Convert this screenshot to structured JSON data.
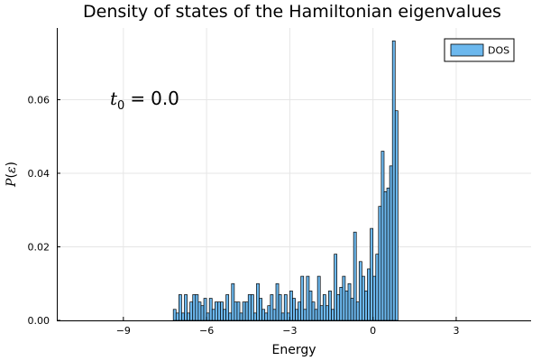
{
  "chart_data": {
    "type": "bar",
    "title": "Density of states of the Hamiltonian eigenvalues",
    "xlabel": "Energy",
    "ylabel_symbol": "P",
    "ylabel_arg": "ε",
    "xlim": [
      -11.4,
      5.7
    ],
    "ylim": [
      0,
      0.0795
    ],
    "xticks": [
      -9,
      -6,
      -3,
      0,
      3
    ],
    "xtick_labels": [
      "−9",
      "−6",
      "−3",
      "0",
      "3"
    ],
    "yticks": [
      0,
      0.02,
      0.04,
      0.06
    ],
    "ytick_labels": [
      "0.00",
      "0.02",
      "0.04",
      "0.06"
    ],
    "grid": true,
    "legend_position": "top-right",
    "bar_color": "#6cb8ee",
    "bin_width": 0.1,
    "series": [
      {
        "name": "DOS",
        "bin_starts": [
          -7.2,
          -7.1,
          -7.0,
          -6.9,
          -6.8,
          -6.7,
          -6.6,
          -6.5,
          -6.4,
          -6.3,
          -6.2,
          -6.1,
          -6.0,
          -5.9,
          -5.8,
          -5.7,
          -5.6,
          -5.5,
          -5.4,
          -5.3,
          -5.2,
          -5.1,
          -5.0,
          -4.9,
          -4.8,
          -4.7,
          -4.6,
          -4.5,
          -4.4,
          -4.3,
          -4.2,
          -4.1,
          -4.0,
          -3.9,
          -3.8,
          -3.7,
          -3.6,
          -3.5,
          -3.4,
          -3.3,
          -3.2,
          -3.1,
          -3.0,
          -2.9,
          -2.8,
          -2.7,
          -2.6,
          -2.5,
          -2.4,
          -2.3,
          -2.2,
          -2.1,
          -2.0,
          -1.9,
          -1.8,
          -1.7,
          -1.6,
          -1.5,
          -1.4,
          -1.3,
          -1.2,
          -1.1,
          -1.0,
          -0.9,
          -0.8,
          -0.7,
          -0.6,
          -0.5,
          -0.4,
          -0.3,
          -0.2,
          -0.1,
          0.0,
          0.1,
          0.2,
          0.3,
          0.4,
          0.5,
          0.6,
          0.7,
          0.8
        ],
        "values": [
          0.003,
          0.002,
          0.007,
          0.002,
          0.007,
          0.002,
          0.005,
          0.007,
          0.007,
          0.005,
          0.004,
          0.006,
          0.002,
          0.006,
          0.003,
          0.005,
          0.005,
          0.005,
          0.003,
          0.007,
          0.002,
          0.01,
          0.005,
          0.005,
          0.002,
          0.005,
          0.005,
          0.007,
          0.007,
          0.002,
          0.01,
          0.006,
          0.003,
          0.002,
          0.004,
          0.007,
          0.003,
          0.01,
          0.007,
          0.002,
          0.007,
          0.002,
          0.008,
          0.006,
          0.003,
          0.005,
          0.012,
          0.003,
          0.012,
          0.008,
          0.005,
          0.003,
          0.012,
          0.004,
          0.007,
          0.004,
          0.008,
          0.003,
          0.018,
          0.007,
          0.009,
          0.012,
          0.008,
          0.01,
          0.006,
          0.024,
          0.005,
          0.016,
          0.012,
          0.008,
          0.014,
          0.025,
          0.012,
          0.018,
          0.031,
          0.046,
          0.035,
          0.036,
          0.042,
          0.076,
          0.057
        ]
      }
    ],
    "annotation": {
      "symbol": "t",
      "subscript": "0",
      "operator": "=",
      "value": "0.0"
    }
  }
}
